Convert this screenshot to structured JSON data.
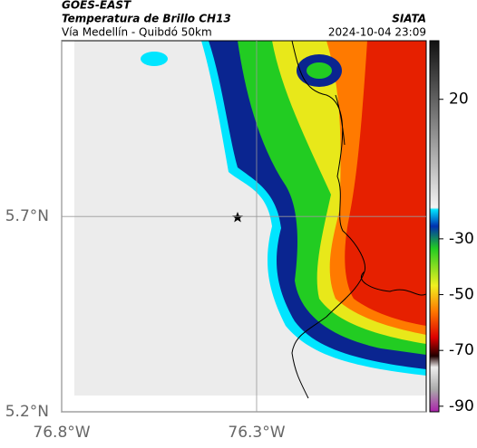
{
  "header": {
    "source": "GOES-EAST",
    "title": "Temperatura de Brillo CH13",
    "subtitle": "Vía Medellín - Quibdó 50km",
    "org": "SIATA",
    "datetime": "2024-10-04 23:09"
  },
  "map": {
    "xlim": [
      -76.8,
      -75.865
    ],
    "ylim": [
      5.2,
      6.15
    ],
    "xticks": [
      {
        "value": -76.8,
        "label": "76.8°W"
      },
      {
        "value": -76.3,
        "label": "76.3°W"
      }
    ],
    "yticks": [
      {
        "value": 5.2,
        "label": "5.2°N"
      },
      {
        "value": 5.7,
        "label": "5.7°N"
      }
    ]
  },
  "colorbar": {
    "lim": [
      -92,
      41
    ],
    "ticks": [
      20,
      -30,
      -50,
      -70,
      -90
    ]
  }
}
